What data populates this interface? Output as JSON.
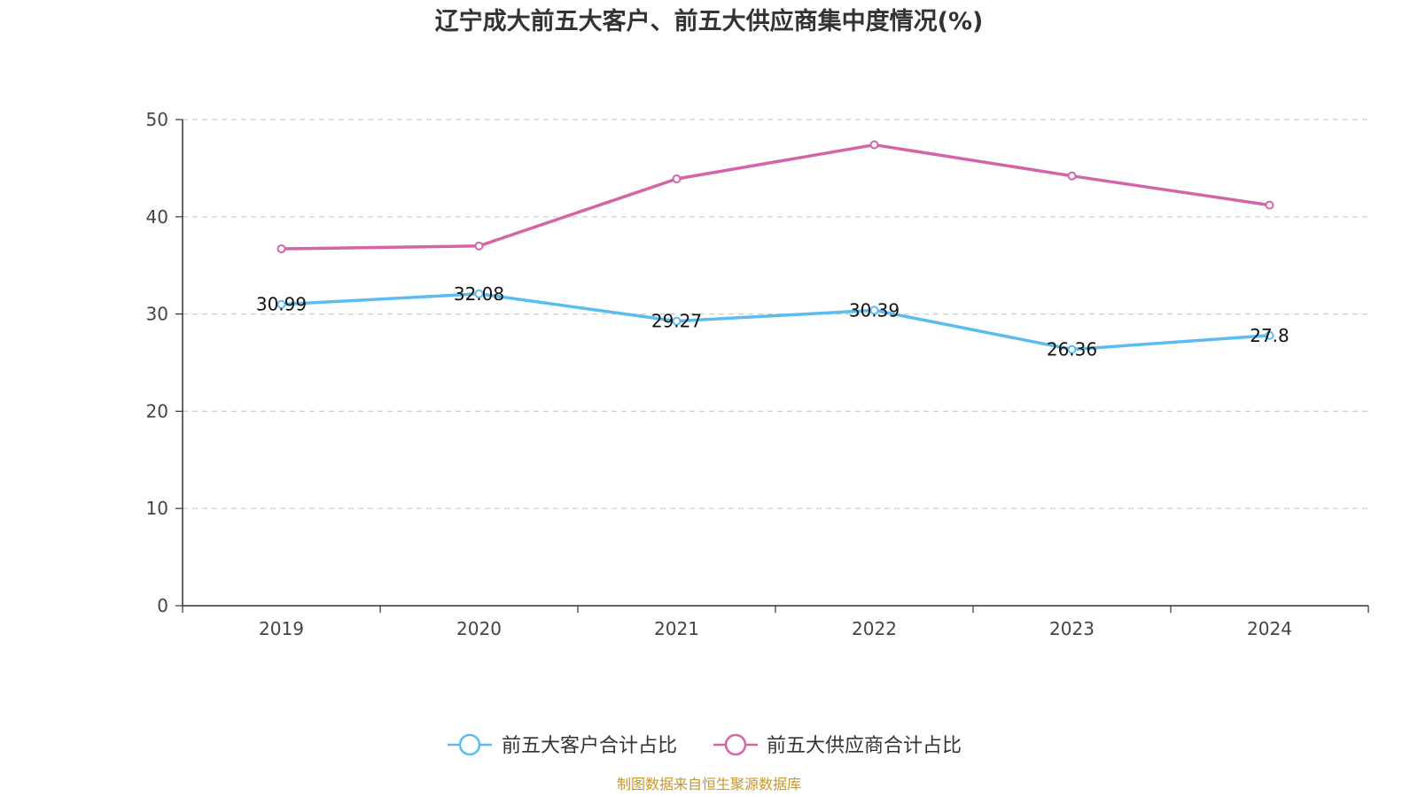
{
  "chart_data": {
    "type": "line",
    "title": "辽宁成大前五大客户、前五大供应商集中度情况(%)",
    "xlabel": "",
    "ylabel": "",
    "categories": [
      "2019",
      "2020",
      "2021",
      "2022",
      "2023",
      "2024"
    ],
    "ylim": [
      0,
      50
    ],
    "yticks": [
      0,
      10,
      20,
      30,
      40,
      50
    ],
    "grid": true,
    "legend_position": "bottom",
    "series": [
      {
        "name": "前五大客户合计占比",
        "color": "#5bbcf0",
        "values": [
          30.99,
          32.08,
          29.27,
          30.39,
          26.36,
          27.8
        ],
        "labels": [
          "30.99",
          "32.08",
          "29.27",
          "30.39",
          "26.36",
          "27.8"
        ],
        "show_labels": true
      },
      {
        "name": "前五大供应商合计占比",
        "color": "#d464a8",
        "values": [
          36.7,
          37.0,
          43.9,
          47.4,
          44.2,
          41.2
        ],
        "show_labels": false
      }
    ],
    "source": "制图数据来自恒生聚源数据库"
  }
}
